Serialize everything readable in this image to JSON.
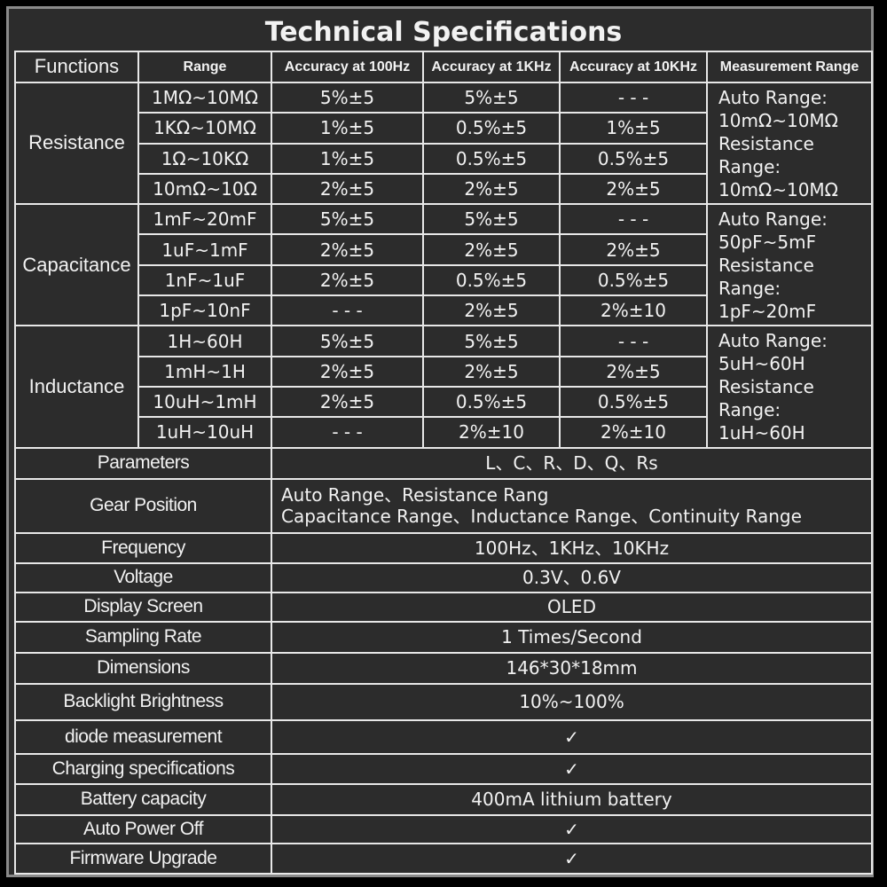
{
  "title": "Technical Specifications",
  "header": [
    "Functions",
    "Range",
    "Accuracy at 100Hz",
    "Accuracy at 1KHz",
    "Accuracy at 10KHz",
    "Measurement Range"
  ],
  "groups": [
    {
      "function": "Resistance",
      "rows": [
        [
          "1MΩ~10MΩ",
          "5%±5",
          "5%±5",
          "- - -"
        ],
        [
          "1KΩ~10MΩ",
          "1%±5",
          "0.5%±5",
          "1%±5"
        ],
        [
          "1Ω~10KΩ",
          "1%±5",
          "0.5%±5",
          "0.5%±5"
        ],
        [
          "10mΩ~10Ω",
          "2%±5",
          "2%±5",
          "2%±5"
        ]
      ],
      "measurement_range": [
        "Auto Range:",
        "10mΩ~10MΩ",
        "Resistance",
        "Range:",
        "10mΩ~10MΩ"
      ]
    },
    {
      "function": "Capacitance",
      "rows": [
        [
          "1mF~20mF",
          "5%±5",
          "5%±5",
          "- - -"
        ],
        [
          "1uF~1mF",
          "2%±5",
          "2%±5",
          "2%±5"
        ],
        [
          "1nF~1uF",
          "2%±5",
          "0.5%±5",
          "0.5%±5"
        ],
        [
          "1pF~10nF",
          "- - -",
          "2%±5",
          "2%±10"
        ]
      ],
      "measurement_range": [
        "Auto Range:",
        "50pF~5mF",
        "Resistance",
        "Range:",
        "1pF~20mF"
      ]
    },
    {
      "function": "Inductance",
      "rows": [
        [
          "1H~60H",
          "5%±5",
          "5%±5",
          "- - -"
        ],
        [
          "1mH~1H",
          "2%±5",
          "2%±5",
          "2%±5"
        ],
        [
          "10uH~1mH",
          "2%±5",
          "0.5%±5",
          "0.5%±5"
        ],
        [
          "1uH~10uH",
          "- - -",
          "2%±10",
          "2%±10"
        ]
      ],
      "measurement_range": [
        "Auto Range:",
        "5uH~60H",
        "Resistance",
        "Range:",
        "1uH~60H"
      ]
    }
  ],
  "specs": [
    {
      "label": "Parameters",
      "value": "L、C、R、D、Q、Rs"
    },
    {
      "label": "Gear Position",
      "value": [
        "Auto Range、Resistance Rang",
        "Capacitance Range、Inductance Range、Continuity Range"
      ]
    },
    {
      "label": "Frequency",
      "value": "100Hz、1KHz、10KHz"
    },
    {
      "label": "Voltage",
      "value": "0.3V、0.6V"
    },
    {
      "label": "Display Screen",
      "value": "OLED"
    },
    {
      "label": "Sampling Rate",
      "value": "1 Times/Second"
    },
    {
      "label": "Dimensions",
      "value": "146*30*18mm"
    },
    {
      "label": "Backlight Brightness",
      "value": "10%~100%"
    },
    {
      "label": "diode measurement",
      "value": "✓"
    },
    {
      "label": "Charging specifications",
      "value": "✓"
    },
    {
      "label": "Battery capacity",
      "value": "400mA lithium battery"
    },
    {
      "label": "Auto Power Off",
      "value": "✓"
    },
    {
      "label": "Firmware Upgrade",
      "value": "✓"
    }
  ]
}
